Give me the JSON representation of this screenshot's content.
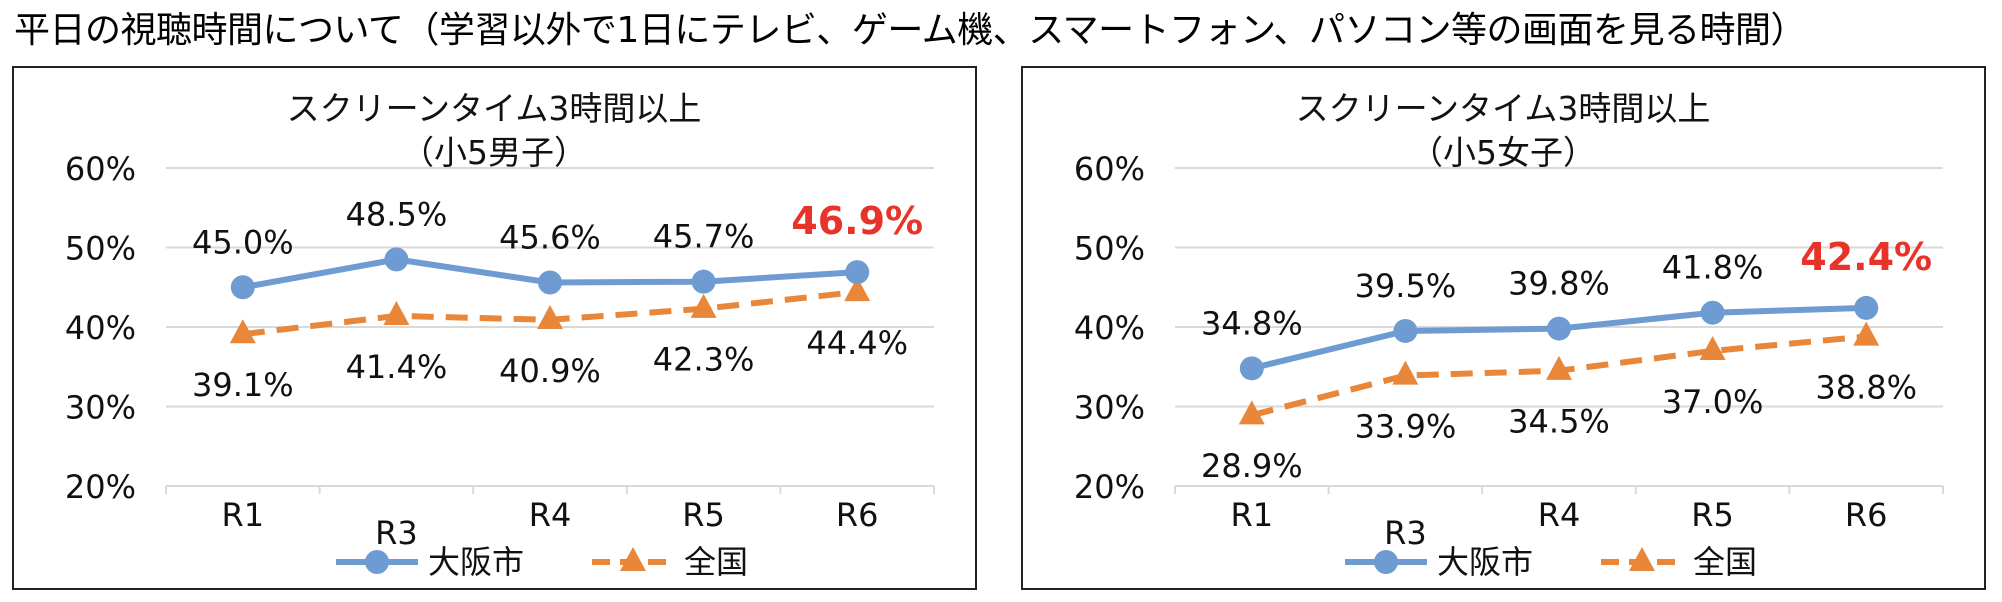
{
  "page": {
    "title": "平日の視聴時間について（学習以外で1日にテレビ、ゲーム機、スマートフォン、パソコン等の画面を見る時間）"
  },
  "chart_data": [
    {
      "type": "line",
      "title": "スクリーンタイム3時間以上",
      "subtitle": "（小5男子）",
      "categories": [
        "R1",
        "R3",
        "R4",
        "R5",
        "R6"
      ],
      "ylim": [
        20,
        60
      ],
      "yticks": [
        20,
        30,
        40,
        50,
        60
      ],
      "ytick_labels": [
        "20%",
        "30%",
        "40%",
        "50%",
        "60%"
      ],
      "grid": true,
      "legend_position": "bottom",
      "series": [
        {
          "name": "大阪市",
          "values": [
            45.0,
            48.5,
            45.6,
            45.7,
            46.9
          ],
          "labels": [
            "45.0%",
            "48.5%",
            "45.6%",
            "45.7%",
            "46.9%"
          ],
          "color": "#6f9bd3",
          "style": "solid",
          "marker": "circle",
          "label_position": "above",
          "highlight_last": true
        },
        {
          "name": "全国",
          "values": [
            39.1,
            41.4,
            40.9,
            42.3,
            44.4
          ],
          "labels": [
            "39.1%",
            "41.4%",
            "40.9%",
            "42.3%",
            "44.4%"
          ],
          "color": "#e8873a",
          "style": "dashed",
          "marker": "triangle",
          "label_position": "below",
          "highlight_last": false
        }
      ],
      "highlight_color": "#e8332a"
    },
    {
      "type": "line",
      "title": "スクリーンタイム3時間以上",
      "subtitle": "（小5女子）",
      "categories": [
        "R1",
        "R3",
        "R4",
        "R5",
        "R6"
      ],
      "ylim": [
        20,
        60
      ],
      "yticks": [
        20,
        30,
        40,
        50,
        60
      ],
      "ytick_labels": [
        "20%",
        "30%",
        "40%",
        "50%",
        "60%"
      ],
      "grid": true,
      "legend_position": "bottom",
      "series": [
        {
          "name": "大阪市",
          "values": [
            34.8,
            39.5,
            39.8,
            41.8,
            42.4
          ],
          "labels": [
            "34.8%",
            "39.5%",
            "39.8%",
            "41.8%",
            "42.4%"
          ],
          "color": "#6f9bd3",
          "style": "solid",
          "marker": "circle",
          "label_position": "above",
          "highlight_last": true
        },
        {
          "name": "全国",
          "values": [
            28.9,
            33.9,
            34.5,
            37.0,
            38.8
          ],
          "labels": [
            "28.9%",
            "33.9%",
            "34.5%",
            "37.0%",
            "38.8%"
          ],
          "color": "#e8873a",
          "style": "dashed",
          "marker": "triangle",
          "label_position": "below",
          "highlight_last": false
        }
      ],
      "highlight_color": "#e8332a"
    }
  ]
}
